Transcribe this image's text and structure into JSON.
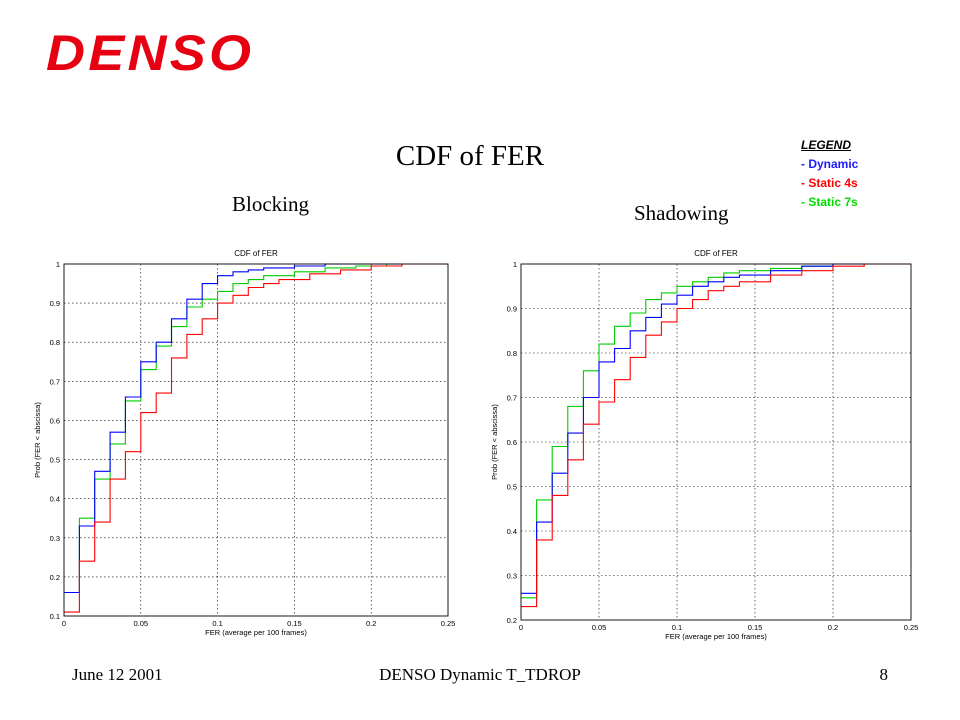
{
  "brand": {
    "logo_text": "DENSO",
    "color": "#e60012"
  },
  "slide": {
    "title": "CDF of FER",
    "left_label": "Blocking",
    "right_label": "Shadowing"
  },
  "legend": {
    "title": "LEGEND",
    "items": [
      {
        "label": "- Dynamic",
        "color": "#0000ff"
      },
      {
        "label": "- Static 4s",
        "color": "#ff0000"
      },
      {
        "label": "- Static 7s",
        "color": "#00e000"
      }
    ]
  },
  "footer": {
    "date": "June 12 2001",
    "title": "DENSO Dynamic T_TDROP",
    "page": "8"
  },
  "chart_data": [
    {
      "type": "line",
      "title": "CDF of FER",
      "xlabel": "FER (average per 100 frames)",
      "ylabel": "Prob (FER < abscissa)",
      "xlim": [
        0,
        0.25
      ],
      "ylim": [
        0.1,
        1
      ],
      "x_ticks": [
        "0",
        "0.05",
        "0.1",
        "0.15",
        "0.2",
        "0.25"
      ],
      "y_ticks": [
        "0.1",
        "0.2",
        "0.3",
        "0.4",
        "0.5",
        "0.6",
        "0.7",
        "0.8",
        "0.9",
        "1"
      ],
      "grid": true,
      "series": [
        {
          "color": "#00cc00",
          "x": [
            0,
            0.01,
            0.02,
            0.03,
            0.04,
            0.05,
            0.06,
            0.07,
            0.08,
            0.09,
            0.1,
            0.11,
            0.12,
            0.13,
            0.15,
            0.17,
            0.19,
            0.21,
            0.25
          ],
          "y": [
            0.16,
            0.35,
            0.45,
            0.54,
            0.65,
            0.73,
            0.79,
            0.84,
            0.89,
            0.91,
            0.93,
            0.95,
            0.96,
            0.97,
            0.98,
            0.99,
            0.995,
            1.0,
            1.0
          ]
        },
        {
          "color": "#0000ff",
          "x": [
            0,
            0.01,
            0.02,
            0.03,
            0.04,
            0.05,
            0.06,
            0.07,
            0.08,
            0.09,
            0.1,
            0.11,
            0.12,
            0.13,
            0.15,
            0.17,
            0.19,
            0.25
          ],
          "y": [
            0.16,
            0.33,
            0.47,
            0.57,
            0.66,
            0.75,
            0.8,
            0.86,
            0.91,
            0.95,
            0.97,
            0.98,
            0.985,
            0.99,
            0.995,
            1.0,
            1.0,
            1.0
          ]
        },
        {
          "color": "#ff0000",
          "x": [
            0,
            0.01,
            0.02,
            0.03,
            0.04,
            0.05,
            0.06,
            0.07,
            0.08,
            0.09,
            0.1,
            0.11,
            0.12,
            0.13,
            0.14,
            0.16,
            0.18,
            0.2,
            0.22,
            0.25
          ],
          "y": [
            0.11,
            0.24,
            0.34,
            0.45,
            0.52,
            0.62,
            0.67,
            0.76,
            0.82,
            0.86,
            0.9,
            0.92,
            0.94,
            0.95,
            0.96,
            0.975,
            0.985,
            0.995,
            1.0,
            1.0
          ]
        }
      ]
    },
    {
      "type": "line",
      "title": "CDF of FER",
      "xlabel": "FER (average per 100 frames)",
      "ylabel": "Prob (FER < abscissa)",
      "xlim": [
        0,
        0.25
      ],
      "ylim": [
        0.2,
        1
      ],
      "x_ticks": [
        "0",
        "0.05",
        "0.1",
        "0.15",
        "0.2",
        "0.25"
      ],
      "y_ticks": [
        "0.2",
        "0.3",
        "0.4",
        "0.5",
        "0.6",
        "0.7",
        "0.8",
        "0.9",
        "1"
      ],
      "grid": true,
      "series": [
        {
          "color": "#00cc00",
          "x": [
            0,
            0.01,
            0.02,
            0.03,
            0.04,
            0.05,
            0.06,
            0.07,
            0.08,
            0.09,
            0.1,
            0.11,
            0.12,
            0.13,
            0.14,
            0.16,
            0.18,
            0.2,
            0.25
          ],
          "y": [
            0.25,
            0.47,
            0.59,
            0.68,
            0.76,
            0.82,
            0.86,
            0.89,
            0.92,
            0.935,
            0.95,
            0.96,
            0.97,
            0.98,
            0.985,
            0.99,
            0.995,
            1.0,
            1.0
          ]
        },
        {
          "color": "#0000ff",
          "x": [
            0,
            0.01,
            0.02,
            0.03,
            0.04,
            0.05,
            0.06,
            0.07,
            0.08,
            0.09,
            0.1,
            0.11,
            0.12,
            0.13,
            0.14,
            0.16,
            0.18,
            0.2,
            0.25
          ],
          "y": [
            0.26,
            0.42,
            0.53,
            0.62,
            0.7,
            0.78,
            0.81,
            0.85,
            0.88,
            0.91,
            0.93,
            0.95,
            0.96,
            0.97,
            0.975,
            0.985,
            0.995,
            1.0,
            1.0
          ]
        },
        {
          "color": "#ff0000",
          "x": [
            0,
            0.01,
            0.02,
            0.03,
            0.04,
            0.05,
            0.06,
            0.07,
            0.08,
            0.09,
            0.1,
            0.11,
            0.12,
            0.13,
            0.14,
            0.16,
            0.18,
            0.2,
            0.22,
            0.25
          ],
          "y": [
            0.23,
            0.38,
            0.48,
            0.56,
            0.64,
            0.69,
            0.74,
            0.79,
            0.84,
            0.87,
            0.9,
            0.92,
            0.94,
            0.95,
            0.96,
            0.975,
            0.985,
            0.995,
            1.0,
            1.0
          ]
        }
      ]
    }
  ]
}
